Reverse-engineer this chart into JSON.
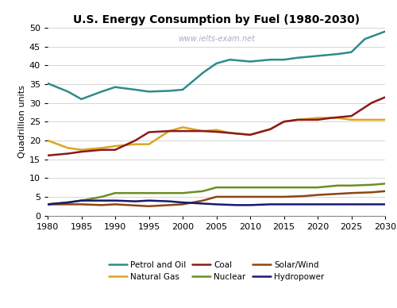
{
  "title": "U.S. Energy Consumption by Fuel (1980-2030)",
  "watermark": "www.ielts-exam.net",
  "ylabel": "Quadrillion units",
  "series": {
    "Petrol and Oil": {
      "color": "#2E8B8B",
      "x": [
        1980,
        1983,
        1985,
        1988,
        1990,
        1993,
        1995,
        1998,
        2000,
        2003,
        2005,
        2007,
        2010,
        2013,
        2015,
        2017,
        2020,
        2023,
        2025,
        2027,
        2030
      ],
      "y": [
        35.2,
        33.0,
        31.0,
        33.0,
        34.2,
        33.5,
        33.0,
        33.2,
        33.5,
        38.0,
        40.5,
        41.5,
        41.0,
        41.5,
        41.5,
        42.0,
        42.5,
        43.0,
        43.5,
        47.0,
        49.0
      ]
    },
    "Natural Gas": {
      "color": "#DAA520",
      "x": [
        1980,
        1983,
        1985,
        1988,
        1990,
        1993,
        1995,
        1998,
        2000,
        2003,
        2005,
        2007,
        2010,
        2013,
        2015,
        2017,
        2020,
        2023,
        2025,
        2028,
        2030
      ],
      "y": [
        20.0,
        18.0,
        17.5,
        18.0,
        18.5,
        19.0,
        19.0,
        22.5,
        23.5,
        22.5,
        22.8,
        22.0,
        21.5,
        23.0,
        25.0,
        25.5,
        26.0,
        26.0,
        25.5,
        25.5,
        25.5
      ]
    },
    "Coal": {
      "color": "#8B1A1A",
      "x": [
        1980,
        1983,
        1985,
        1988,
        1990,
        1993,
        1995,
        1998,
        2000,
        2003,
        2005,
        2007,
        2010,
        2013,
        2015,
        2017,
        2020,
        2022,
        2025,
        2028,
        2030
      ],
      "y": [
        16.0,
        16.5,
        17.0,
        17.5,
        17.5,
        20.0,
        22.2,
        22.5,
        22.5,
        22.5,
        22.3,
        22.0,
        21.5,
        23.0,
        25.0,
        25.5,
        25.5,
        26.0,
        26.5,
        30.0,
        31.5
      ]
    },
    "Nuclear": {
      "color": "#6B8E23",
      "x": [
        1980,
        1983,
        1985,
        1988,
        1990,
        1993,
        1995,
        1998,
        2000,
        2003,
        2005,
        2008,
        2010,
        2013,
        2015,
        2018,
        2020,
        2023,
        2025,
        2028,
        2030
      ],
      "y": [
        3.0,
        3.5,
        4.0,
        5.0,
        6.0,
        6.0,
        6.0,
        6.0,
        6.0,
        6.5,
        7.5,
        7.5,
        7.5,
        7.5,
        7.5,
        7.5,
        7.5,
        8.0,
        8.0,
        8.2,
        8.5
      ]
    },
    "Solar/Wind": {
      "color": "#8B4513",
      "x": [
        1980,
        1983,
        1985,
        1988,
        1990,
        1993,
        1995,
        1998,
        2000,
        2003,
        2005,
        2008,
        2010,
        2013,
        2015,
        2018,
        2020,
        2023,
        2025,
        2028,
        2030
      ],
      "y": [
        3.0,
        3.0,
        3.0,
        2.8,
        3.0,
        2.7,
        2.5,
        2.8,
        3.0,
        4.0,
        5.0,
        5.0,
        5.0,
        5.0,
        5.0,
        5.2,
        5.5,
        5.8,
        6.0,
        6.2,
        6.5
      ]
    },
    "Hydropower": {
      "color": "#191970",
      "x": [
        1980,
        1983,
        1985,
        1988,
        1990,
        1993,
        1995,
        1998,
        2000,
        2003,
        2005,
        2008,
        2010,
        2013,
        2015,
        2018,
        2020,
        2023,
        2025,
        2028,
        2030
      ],
      "y": [
        3.0,
        3.5,
        4.0,
        4.0,
        4.0,
        3.8,
        4.0,
        3.8,
        3.5,
        3.2,
        3.0,
        2.8,
        2.8,
        3.0,
        3.0,
        3.0,
        3.0,
        3.0,
        3.0,
        3.0,
        3.0
      ]
    }
  },
  "legend_order": [
    "Petrol and Oil",
    "Natural Gas",
    "Coal",
    "Nuclear",
    "Solar/Wind",
    "Hydropower"
  ],
  "xlim": [
    1980,
    2030
  ],
  "ylim": [
    0,
    50
  ],
  "yticks": [
    0,
    5,
    10,
    15,
    20,
    25,
    30,
    35,
    40,
    45,
    50
  ],
  "xticks": [
    1980,
    1985,
    1990,
    1995,
    2000,
    2005,
    2010,
    2015,
    2020,
    2025,
    2030
  ],
  "background_color": "#ffffff",
  "grid_color": "#d0d0d0"
}
